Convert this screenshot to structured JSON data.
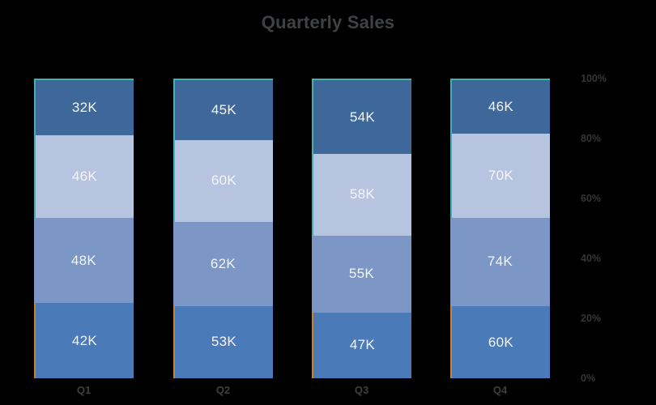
{
  "page": {
    "background_color": "#000000"
  },
  "chart_data": {
    "type": "bar",
    "subtype": "stacked-100-percent",
    "title": "Quarterly Sales",
    "categories": [
      "Q1",
      "Q2",
      "Q3",
      "Q4"
    ],
    "stack_order": "top-to-bottom",
    "series": [
      {
        "name": "segment-top",
        "color": "#3d6899",
        "values": [
          32,
          45,
          54,
          46
        ]
      },
      {
        "name": "segment-upper-middle",
        "color": "#b7c4e0",
        "values": [
          46,
          60,
          58,
          70
        ]
      },
      {
        "name": "segment-lower-middle",
        "color": "#7c96c5",
        "values": [
          48,
          62,
          55,
          74
        ]
      },
      {
        "name": "segment-bottom",
        "color": "#4a7ab7",
        "values": [
          42,
          53,
          47,
          60
        ]
      }
    ],
    "value_suffix": "K",
    "data_labels": {
      "visible": true,
      "color": "#f3f5f9",
      "texts": [
        [
          "32K",
          "45K",
          "54K",
          "46K"
        ],
        [
          "46K",
          "60K",
          "58K",
          "70K"
        ],
        [
          "48K",
          "62K",
          "55K",
          "74K"
        ],
        [
          "42K",
          "53K",
          "47K",
          "60K"
        ]
      ]
    },
    "y_axis": {
      "position": "right",
      "ticks": [
        "0%",
        "20%",
        "40%",
        "60%",
        "80%",
        "100%"
      ],
      "range": [
        0,
        100
      ],
      "grid": false
    },
    "legend": "none",
    "colors": {
      "title": "#3f4245",
      "tick_label": "#353535",
      "category_label": "#3f3f3f",
      "value_label": "#f3f5f9",
      "bar_edge_teal": "#42b0b4",
      "bar_edge_orange": "#c8832e",
      "background": "#000000"
    }
  }
}
